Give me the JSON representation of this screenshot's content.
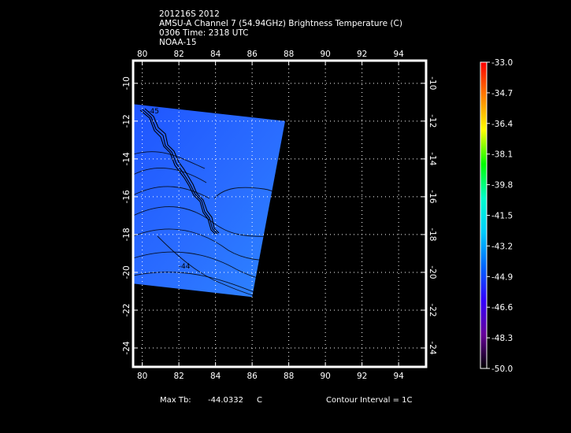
{
  "header": {
    "line1": "201216S 2012",
    "line2": "AMSU-A Channel 7 (54.94GHz) Brightness Temperature (C)",
    "line3": "0306 Time: 2318 UTC",
    "line4": "NOAA-15"
  },
  "footer": {
    "max_label": "Max Tb:",
    "max_value": "-44.0332",
    "max_unit": "C",
    "contour_interval": "Contour Interval = 1C"
  },
  "chart_data": {
    "type": "heatmap",
    "title": "AMSU-A Channel 7 (54.94GHz) Brightness Temperature (C)",
    "x_ticks": [
      "80",
      "82",
      "84",
      "86",
      "88",
      "90",
      "92",
      "94"
    ],
    "x_tick_values": [
      80,
      82,
      84,
      86,
      88,
      90,
      92,
      94
    ],
    "y_ticks": [
      "-10",
      "-12",
      "-14",
      "-16",
      "-18",
      "-20",
      "-22",
      "-24"
    ],
    "y_tick_values": [
      -10,
      -12,
      -14,
      -16,
      -18,
      -20,
      -22,
      -24
    ],
    "xlim": [
      79.5,
      95.5
    ],
    "ylim": [
      -25.0,
      -8.8
    ],
    "grid": true,
    "swath_corners": [
      [
        79.5,
        -11.1
      ],
      [
        87.8,
        -12.0
      ],
      [
        86.0,
        -21.3
      ],
      [
        79.5,
        -20.6
      ]
    ],
    "contour_labels": [
      {
        "x": 82.3,
        "y": -19.8,
        "text": "-44"
      },
      {
        "x": 80.6,
        "y": -11.6,
        "text": "-45"
      }
    ],
    "colorbar": {
      "labels": [
        "-33.0",
        "-34.7",
        "-36.4",
        "-38.1",
        "-39.8",
        "-41.5",
        "-43.2",
        "-44.9",
        "-46.6",
        "-48.3",
        "-50.0"
      ],
      "min": -50.0,
      "max": -33.0,
      "colors": [
        "#ff0000",
        "#ff8000",
        "#ffff00",
        "#00ff00",
        "#00ffcc",
        "#00ccff",
        "#0066ff",
        "#3300ff",
        "#660099",
        "#000000"
      ]
    }
  }
}
